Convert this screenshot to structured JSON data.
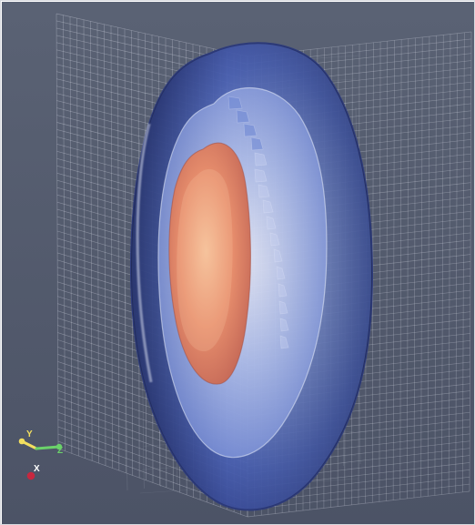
{
  "viewer": {
    "background_color": "#535a6d",
    "mesh_color": "#e6e9f2",
    "surface_colors": {
      "outer": "#3c4fa5",
      "mid": "#7d93d8",
      "inner_light": "#d7dbe9",
      "warm_core": "#e57f60",
      "hot_core": "#f5b88d"
    }
  },
  "orientation_axes": {
    "y_label": "Y",
    "z_label": "Z",
    "x_label": "X",
    "y_color": "#f3e05f",
    "z_color": "#6bd26a",
    "x_color": "#c7273f"
  }
}
